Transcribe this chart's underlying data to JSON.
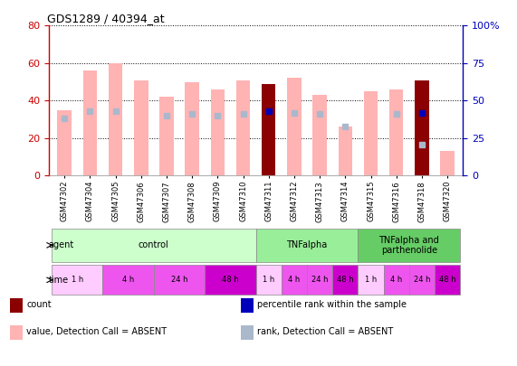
{
  "title": "GDS1289 / 40394_at",
  "samples": [
    "GSM47302",
    "GSM47304",
    "GSM47305",
    "GSM47306",
    "GSM47307",
    "GSM47308",
    "GSM47309",
    "GSM47310",
    "GSM47311",
    "GSM47312",
    "GSM47313",
    "GSM47314",
    "GSM47315",
    "GSM47316",
    "GSM47318",
    "GSM47320"
  ],
  "bar_values_pink": [
    35,
    56,
    60,
    51,
    42,
    50,
    46,
    51,
    0,
    52,
    43,
    26,
    45,
    46,
    0,
    13
  ],
  "bar_values_dark": [
    0,
    0,
    0,
    0,
    0,
    0,
    0,
    0,
    49,
    0,
    0,
    0,
    0,
    0,
    51,
    0
  ],
  "rank_blue_light": [
    38,
    43,
    43,
    0,
    40,
    41,
    40,
    41,
    0,
    42,
    41,
    33,
    0,
    41,
    21,
    0
  ],
  "rank_blue_dark": [
    0,
    0,
    0,
    0,
    0,
    0,
    0,
    0,
    43,
    0,
    0,
    0,
    0,
    0,
    42,
    0
  ],
  "ylim_left": [
    0,
    80
  ],
  "ylim_right": [
    0,
    100
  ],
  "yticks_left": [
    0,
    20,
    40,
    60,
    80
  ],
  "yticks_right": [
    0,
    25,
    50,
    75,
    100
  ],
  "color_pink_bar": "#ffb3b3",
  "color_dark_bar": "#8b0000",
  "color_blue_dark": "#0000bb",
  "color_blue_light": "#aab8cc",
  "left_axis_color": "#cc0000",
  "right_axis_color": "#0000bb",
  "agent_groups": [
    {
      "label": "control",
      "start": 0,
      "end": 8,
      "color": "#ccffcc"
    },
    {
      "label": "TNFalpha",
      "start": 8,
      "end": 12,
      "color": "#99ee99"
    },
    {
      "label": "TNFalpha and\nparthenolide",
      "start": 12,
      "end": 16,
      "color": "#66cc66"
    }
  ],
  "time_groups": [
    {
      "label": "1 h",
      "start": 0,
      "end": 2,
      "color": "#ffccff"
    },
    {
      "label": "4 h",
      "start": 2,
      "end": 4,
      "color": "#ee55ee"
    },
    {
      "label": "24 h",
      "start": 4,
      "end": 6,
      "color": "#ee55ee"
    },
    {
      "label": "48 h",
      "start": 6,
      "end": 8,
      "color": "#cc00cc"
    },
    {
      "label": "1 h",
      "start": 8,
      "end": 9,
      "color": "#ffccff"
    },
    {
      "label": "4 h",
      "start": 9,
      "end": 10,
      "color": "#ee55ee"
    },
    {
      "label": "24 h",
      "start": 10,
      "end": 11,
      "color": "#ee55ee"
    },
    {
      "label": "48 h",
      "start": 11,
      "end": 12,
      "color": "#cc00cc"
    },
    {
      "label": "1 h",
      "start": 12,
      "end": 13,
      "color": "#ffccff"
    },
    {
      "label": "4 h",
      "start": 13,
      "end": 14,
      "color": "#ee55ee"
    },
    {
      "label": "24 h",
      "start": 14,
      "end": 15,
      "color": "#ee55ee"
    },
    {
      "label": "48 h",
      "start": 15,
      "end": 16,
      "color": "#cc00cc"
    }
  ],
  "legend_labels": [
    "count",
    "percentile rank within the sample",
    "value, Detection Call = ABSENT",
    "rank, Detection Call = ABSENT"
  ],
  "legend_colors": [
    "#8b0000",
    "#0000bb",
    "#ffb3b3",
    "#aab8cc"
  ],
  "bg_color": "#f0f0f0"
}
